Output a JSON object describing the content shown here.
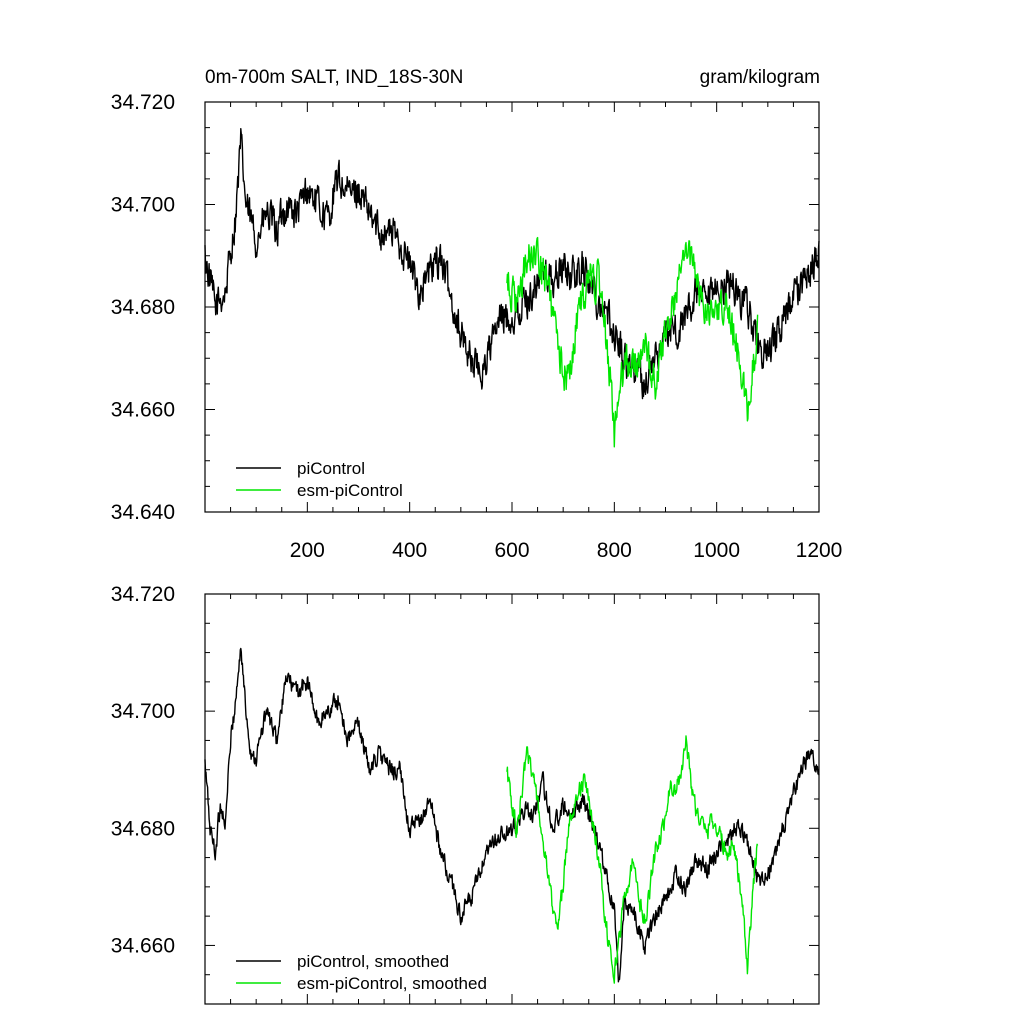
{
  "chart_data": [
    {
      "type": "line",
      "title": "0m-700m SALT, IND_18S-30N",
      "units": "gram/kilogram",
      "xlim": [
        0,
        1200
      ],
      "ylim": [
        34.64,
        34.72
      ],
      "xticks": [
        200,
        400,
        600,
        800,
        1000,
        1200
      ],
      "xtick_labels": [
        "200",
        "400",
        "600",
        "800",
        "1000",
        "1200"
      ],
      "yticks": [
        34.64,
        34.66,
        34.68,
        34.7,
        34.72
      ],
      "ytick_labels": [
        "34.640",
        "34.660",
        "34.680",
        "34.700",
        "34.720"
      ],
      "legend": [
        "piControl",
        "esm-piControl"
      ],
      "legend_position": "bottom-left",
      "series": [
        {
          "name": "piControl",
          "color": "#000000",
          "x": [
            0,
            20,
            40,
            60,
            70,
            80,
            100,
            120,
            140,
            160,
            180,
            200,
            220,
            240,
            260,
            280,
            300,
            320,
            340,
            360,
            380,
            400,
            420,
            440,
            460,
            480,
            500,
            520,
            540,
            560,
            580,
            600,
            620,
            640,
            660,
            680,
            700,
            720,
            740,
            760,
            780,
            800,
            820,
            840,
            860,
            880,
            900,
            920,
            940,
            960,
            980,
            1000,
            1020,
            1040,
            1060,
            1080,
            1100,
            1120,
            1140,
            1160,
            1180,
            1200
          ],
          "y": [
            34.69,
            34.68,
            34.683,
            34.698,
            34.712,
            34.7,
            34.693,
            34.698,
            34.695,
            34.7,
            34.698,
            34.703,
            34.7,
            34.697,
            34.705,
            34.702,
            34.703,
            34.698,
            34.695,
            34.695,
            34.693,
            34.688,
            34.683,
            34.687,
            34.69,
            34.682,
            34.675,
            34.67,
            34.667,
            34.673,
            34.678,
            34.678,
            34.68,
            34.683,
            34.687,
            34.685,
            34.688,
            34.686,
            34.688,
            34.683,
            34.68,
            34.675,
            34.67,
            34.668,
            34.665,
            34.67,
            34.675,
            34.675,
            34.678,
            34.683,
            34.68,
            34.683,
            34.685,
            34.683,
            34.68,
            34.673,
            34.67,
            34.675,
            34.68,
            34.683,
            34.687,
            34.69
          ],
          "noise": 0.0055
        },
        {
          "name": "esm-piControl",
          "color": "#00e600",
          "x": [
            590,
            610,
            630,
            650,
            670,
            690,
            710,
            730,
            750,
            770,
            790,
            800,
            820,
            840,
            860,
            880,
            900,
            920,
            940,
            960,
            980,
            1000,
            1020,
            1040,
            1060,
            1080
          ],
          "y": [
            34.685,
            34.68,
            34.69,
            34.69,
            34.684,
            34.672,
            34.665,
            34.68,
            34.685,
            34.685,
            34.668,
            34.655,
            34.67,
            34.668,
            34.672,
            34.665,
            34.676,
            34.682,
            34.693,
            34.685,
            34.678,
            34.68,
            34.682,
            34.672,
            34.66,
            34.675
          ],
          "noise": 0.0055
        }
      ]
    },
    {
      "type": "line",
      "title": "",
      "xlim": [
        0,
        1200
      ],
      "ylim": [
        34.65,
        34.72
      ],
      "yticks": [
        34.66,
        34.68,
        34.7,
        34.72
      ],
      "ytick_labels": [
        "34.660",
        "34.680",
        "34.700",
        "34.720"
      ],
      "legend": [
        "piControl, smoothed",
        "esm-piControl, smoothed"
      ],
      "legend_position": "bottom-left",
      "series": [
        {
          "name": "piControl, smoothed",
          "color": "#000000",
          "x": [
            0,
            10,
            20,
            30,
            40,
            50,
            60,
            70,
            80,
            90,
            100,
            120,
            140,
            160,
            180,
            200,
            220,
            240,
            260,
            280,
            300,
            320,
            340,
            360,
            380,
            400,
            420,
            440,
            460,
            480,
            500,
            520,
            540,
            560,
            580,
            600,
            620,
            640,
            660,
            680,
            700,
            720,
            740,
            760,
            780,
            800,
            810,
            820,
            840,
            860,
            880,
            900,
            920,
            940,
            960,
            980,
            1000,
            1020,
            1040,
            1060,
            1080,
            1100,
            1120,
            1140,
            1160,
            1180,
            1200
          ],
          "y": [
            34.691,
            34.68,
            34.676,
            34.684,
            34.681,
            34.695,
            34.702,
            34.711,
            34.7,
            34.693,
            34.692,
            34.7,
            34.695,
            34.706,
            34.703,
            34.705,
            34.698,
            34.7,
            34.702,
            34.695,
            34.698,
            34.69,
            34.693,
            34.69,
            34.69,
            34.68,
            34.681,
            34.685,
            34.676,
            34.671,
            34.665,
            34.668,
            34.673,
            34.677,
            34.679,
            34.679,
            34.683,
            34.682,
            34.688,
            34.68,
            34.684,
            34.683,
            34.685,
            34.68,
            34.674,
            34.666,
            34.653,
            34.668,
            34.665,
            34.66,
            34.665,
            34.668,
            34.672,
            34.67,
            34.675,
            34.673,
            34.676,
            34.678,
            34.68,
            34.678,
            34.671,
            34.672,
            34.677,
            34.683,
            34.688,
            34.693,
            34.689
          ],
          "noise": 0.0025
        },
        {
          "name": "esm-piControl, smoothed",
          "color": "#00e600",
          "x": [
            590,
            600,
            610,
            620,
            630,
            640,
            650,
            660,
            670,
            680,
            690,
            700,
            710,
            720,
            730,
            740,
            750,
            760,
            770,
            780,
            790,
            800,
            810,
            820,
            830,
            840,
            850,
            860,
            870,
            880,
            890,
            900,
            910,
            920,
            930,
            940,
            950,
            960,
            970,
            980,
            990,
            1000,
            1010,
            1020,
            1030,
            1040,
            1050,
            1060,
            1070,
            1080
          ],
          "y": [
            34.69,
            34.684,
            34.679,
            34.687,
            34.693,
            34.69,
            34.684,
            34.678,
            34.672,
            34.666,
            34.664,
            34.67,
            34.68,
            34.684,
            34.686,
            34.688,
            34.685,
            34.68,
            34.675,
            34.666,
            34.66,
            34.655,
            34.662,
            34.668,
            34.672,
            34.675,
            34.667,
            34.664,
            34.67,
            34.676,
            34.678,
            34.682,
            34.688,
            34.686,
            34.69,
            34.695,
            34.688,
            34.683,
            34.681,
            34.679,
            34.682,
            34.68,
            34.678,
            34.675,
            34.678,
            34.674,
            34.667,
            34.656,
            34.668,
            34.678
          ],
          "noise": 0.0025
        }
      ]
    }
  ]
}
